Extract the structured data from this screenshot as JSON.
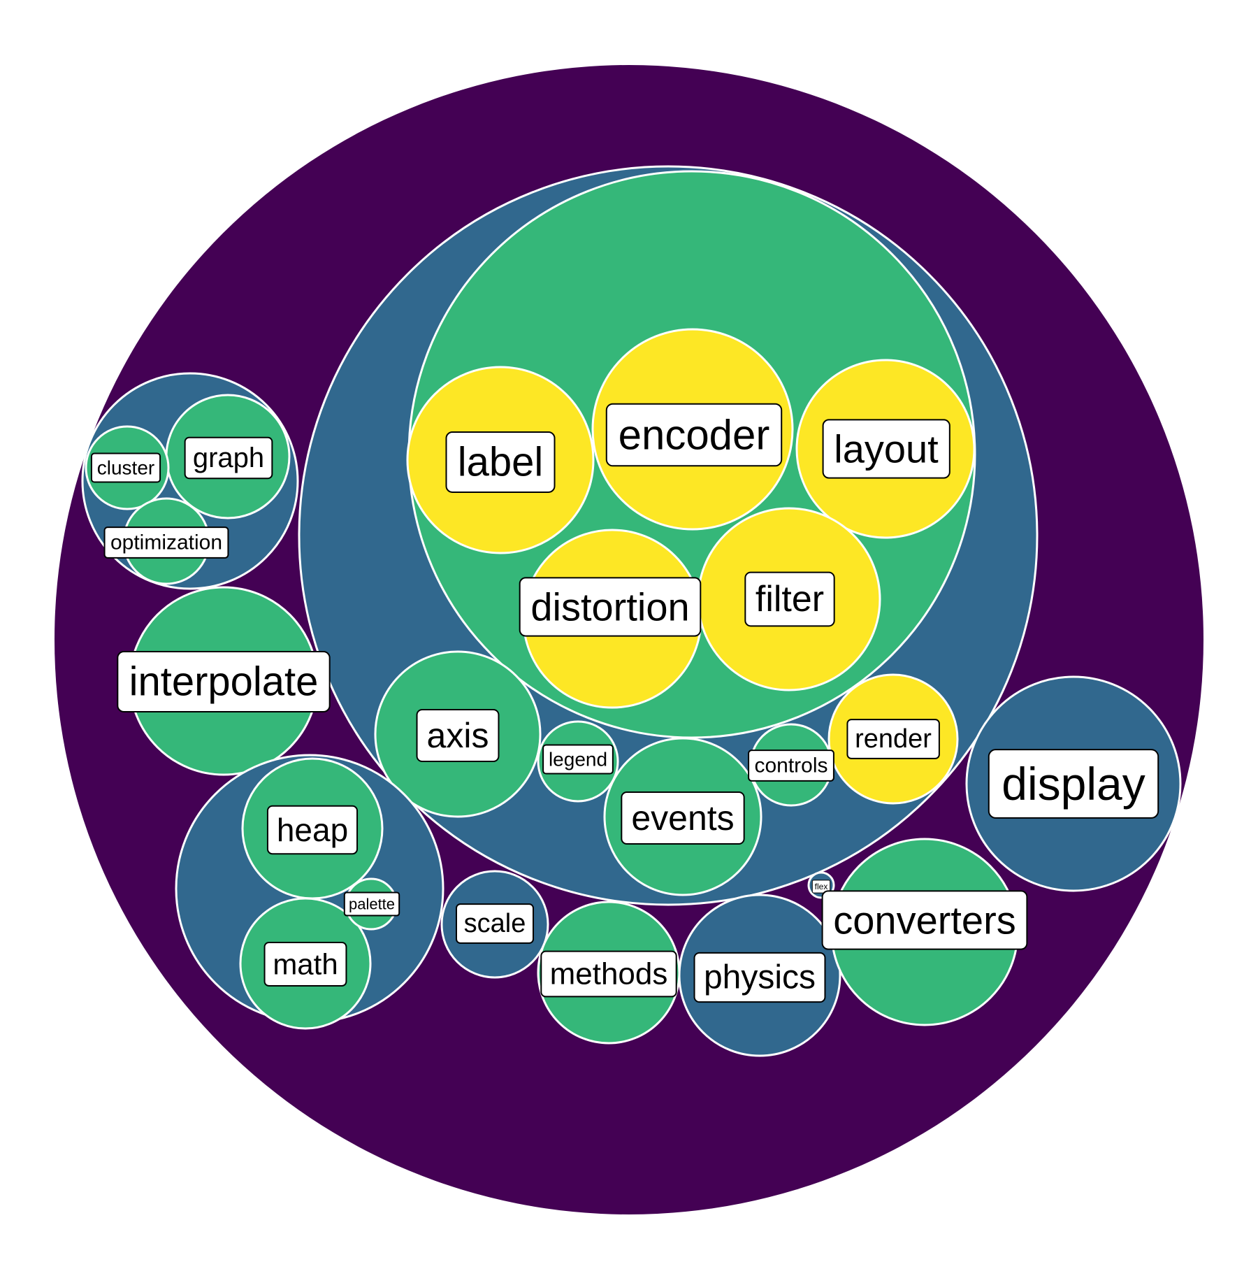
{
  "colors": {
    "depth0": "#440154",
    "depth1": "#31688e",
    "depth2": "#35b779",
    "depth3": "#fde725",
    "outline": "#ffffff",
    "label_bg": "#ffffff",
    "label_border": "#000000",
    "label_text": "#000000"
  },
  "diagram": {
    "type": "circle-packing",
    "nodes": [
      {
        "id": "root",
        "depth": 0
      },
      {
        "id": "group-vis",
        "depth": 1
      },
      {
        "id": "group-vis-inner",
        "depth": 2
      },
      {
        "id": "label",
        "label": "label",
        "depth": 3
      },
      {
        "id": "encoder",
        "label": "encoder",
        "depth": 3
      },
      {
        "id": "layout",
        "label": "layout",
        "depth": 3
      },
      {
        "id": "distortion",
        "label": "distortion",
        "depth": 3
      },
      {
        "id": "filter",
        "label": "filter",
        "depth": 3
      },
      {
        "id": "axis",
        "label": "axis",
        "depth": 2
      },
      {
        "id": "legend",
        "label": "legend",
        "depth": 2
      },
      {
        "id": "events",
        "label": "events",
        "depth": 2
      },
      {
        "id": "controls",
        "label": "controls",
        "depth": 2
      },
      {
        "id": "render",
        "label": "render",
        "depth": 3
      },
      {
        "id": "group-analytics",
        "depth": 1
      },
      {
        "id": "graph",
        "label": "graph",
        "depth": 2
      },
      {
        "id": "cluster",
        "label": "cluster",
        "depth": 2
      },
      {
        "id": "optimization",
        "label": "optimization",
        "depth": 2
      },
      {
        "id": "interpolate",
        "label": "interpolate",
        "depth": 2
      },
      {
        "id": "group-util",
        "depth": 1
      },
      {
        "id": "heap",
        "label": "heap",
        "depth": 2
      },
      {
        "id": "math",
        "label": "math",
        "depth": 2
      },
      {
        "id": "palette",
        "label": "palette",
        "depth": 2
      },
      {
        "id": "scale",
        "label": "scale",
        "depth": 1
      },
      {
        "id": "methods",
        "label": "methods",
        "depth": 2
      },
      {
        "id": "physics",
        "label": "physics",
        "depth": 1
      },
      {
        "id": "flex",
        "label": "flex",
        "depth": 1
      },
      {
        "id": "converters",
        "label": "converters",
        "depth": 2
      },
      {
        "id": "display",
        "label": "display",
        "depth": 1
      }
    ]
  }
}
